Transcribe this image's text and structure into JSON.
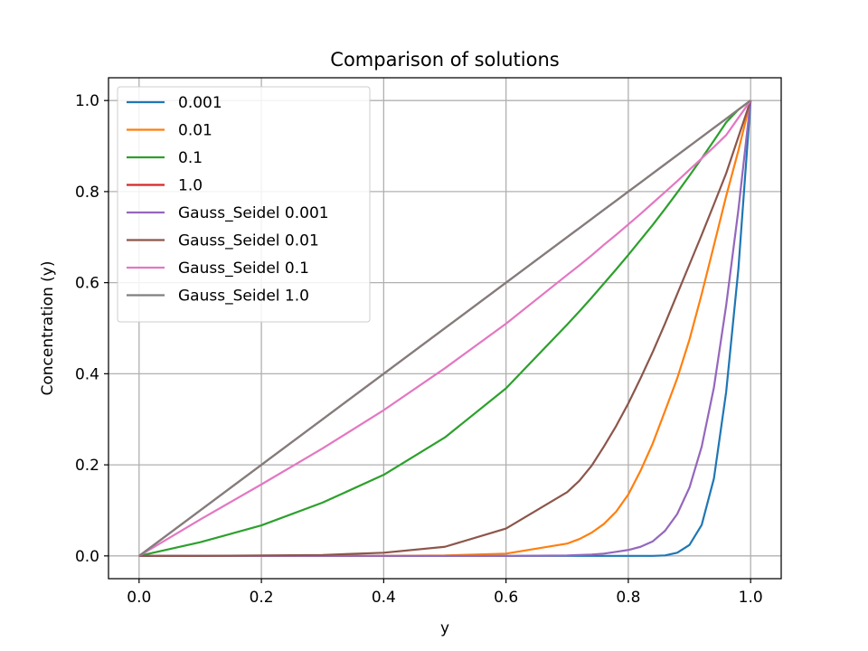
{
  "chart_data": {
    "type": "line",
    "title": "Comparison of solutions",
    "xlabel": "y",
    "ylabel": "Concentration (y)",
    "xlim": [
      -0.05,
      1.05
    ],
    "ylim": [
      -0.05,
      1.05
    ],
    "xticks": [
      0.0,
      0.2,
      0.4,
      0.6,
      0.8,
      1.0
    ],
    "yticks": [
      0.0,
      0.2,
      0.4,
      0.6,
      0.8,
      1.0
    ],
    "xtick_labels": [
      "0.0",
      "0.2",
      "0.4",
      "0.6",
      "0.8",
      "1.0"
    ],
    "ytick_labels": [
      "0.0",
      "0.2",
      "0.4",
      "0.6",
      "0.8",
      "1.0"
    ],
    "grid": true,
    "legend_position": "upper-left",
    "x": [
      0.0,
      0.1,
      0.2,
      0.3,
      0.4,
      0.5,
      0.6,
      0.7,
      0.72,
      0.74,
      0.76,
      0.78,
      0.8,
      0.82,
      0.84,
      0.86,
      0.88,
      0.9,
      0.92,
      0.94,
      0.96,
      0.98,
      1.0
    ],
    "series": [
      {
        "name": "0.001",
        "color": "#1f77b4",
        "values": [
          0,
          0,
          0,
          0,
          0,
          0,
          0,
          0,
          0,
          0,
          0,
          0,
          0,
          0,
          0,
          0.001,
          0.007,
          0.024,
          0.068,
          0.17,
          0.36,
          0.63,
          1.0
        ]
      },
      {
        "name": "0.01",
        "color": "#ff7f0e",
        "values": [
          0,
          0,
          0,
          0,
          0,
          0.001,
          0.005,
          0.027,
          0.037,
          0.051,
          0.07,
          0.097,
          0.135,
          0.187,
          0.247,
          0.318,
          0.39,
          0.475,
          0.575,
          0.682,
          0.79,
          0.89,
          1.0
        ]
      },
      {
        "name": "0.1",
        "color": "#2ca02c",
        "values": [
          0,
          0.03,
          0.067,
          0.117,
          0.178,
          0.26,
          0.368,
          0.508,
          0.537,
          0.567,
          0.598,
          0.629,
          0.661,
          0.694,
          0.727,
          0.762,
          0.798,
          0.835,
          0.873,
          0.912,
          0.952,
          0.98,
          1.0
        ]
      },
      {
        "name": "1.0",
        "color": "#d62728",
        "values": [
          0,
          0.1,
          0.2,
          0.3,
          0.4,
          0.5,
          0.6,
          0.7,
          0.72,
          0.74,
          0.76,
          0.78,
          0.8,
          0.82,
          0.84,
          0.86,
          0.88,
          0.9,
          0.92,
          0.94,
          0.96,
          0.98,
          1.0
        ]
      },
      {
        "name": "Gauss_Seidel 0.001",
        "color": "#9467bd",
        "values": [
          0,
          0,
          0,
          0,
          0,
          0,
          0,
          0.001,
          0.002,
          0.003,
          0.005,
          0.009,
          0.013,
          0.02,
          0.032,
          0.055,
          0.092,
          0.15,
          0.24,
          0.37,
          0.55,
          0.76,
          1.0
        ]
      },
      {
        "name": "Gauss_Seidel 0.01",
        "color": "#8c564b",
        "values": [
          0,
          0,
          0.001,
          0.002,
          0.007,
          0.02,
          0.06,
          0.14,
          0.165,
          0.198,
          0.24,
          0.285,
          0.335,
          0.39,
          0.448,
          0.51,
          0.575,
          0.64,
          0.705,
          0.772,
          0.84,
          0.92,
          1.0
        ]
      },
      {
        "name": "Gauss_Seidel 0.1",
        "color": "#e377c2",
        "values": [
          0,
          0.08,
          0.157,
          0.236,
          0.32,
          0.412,
          0.51,
          0.617,
          0.638,
          0.66,
          0.683,
          0.705,
          0.728,
          0.751,
          0.775,
          0.799,
          0.823,
          0.848,
          0.873,
          0.898,
          0.924,
          0.962,
          1.0
        ]
      },
      {
        "name": "Gauss_Seidel 1.0",
        "color": "#7f7f7f",
        "values": [
          0,
          0.1,
          0.2,
          0.3,
          0.4,
          0.5,
          0.6,
          0.7,
          0.72,
          0.74,
          0.76,
          0.78,
          0.8,
          0.82,
          0.84,
          0.86,
          0.88,
          0.9,
          0.92,
          0.94,
          0.96,
          0.98,
          1.0
        ]
      }
    ]
  }
}
